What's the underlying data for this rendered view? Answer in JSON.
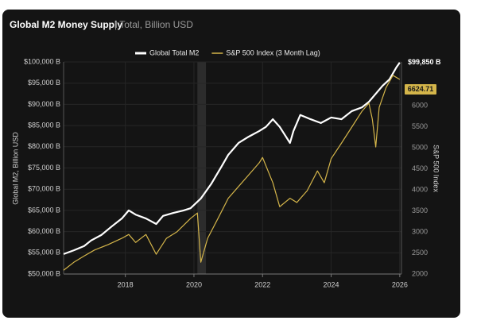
{
  "chart_data": {
    "type": "line",
    "title": "Global M2 Money Supply",
    "subtitle": "| Total, Billion USD",
    "y_label": "Global M2, Billion USD",
    "y2_label": "S&P 500 Index",
    "xlim": [
      2016.2,
      2026.05
    ],
    "xticks": [
      2018,
      2020,
      2022,
      2024,
      2026
    ],
    "ylim": [
      50000,
      100000
    ],
    "yticks": [
      {
        "value": 50000,
        "label": "$50,000 B"
      },
      {
        "value": 55000,
        "label": "$55,000 B"
      },
      {
        "value": 60000,
        "label": "$60,000 B"
      },
      {
        "value": 65000,
        "label": "$65,000 B"
      },
      {
        "value": 70000,
        "label": "$70,000 B"
      },
      {
        "value": 75000,
        "label": "$75,000 B"
      },
      {
        "value": 80000,
        "label": "$80,000 B"
      },
      {
        "value": 85000,
        "label": "$85,000 B"
      },
      {
        "value": 90000,
        "label": "$90,000 B"
      },
      {
        "value": 95000,
        "label": "$95,000 B"
      },
      {
        "value": 100000,
        "label": "$100,000 B"
      }
    ],
    "y2lim": [
      2000,
      7040
    ],
    "y2ticks": [
      2000,
      2500,
      3000,
      3500,
      4000,
      4500,
      5000,
      5500,
      6000
    ],
    "grid": true,
    "legend": "top",
    "shaded_range": [
      2020.1,
      2020.35
    ],
    "series": [
      {
        "name": "Global Total M2",
        "color": "#ffffff",
        "x": [
          2016.2,
          2016.5,
          2016.8,
          2017.0,
          2017.3,
          2017.6,
          2017.9,
          2018.1,
          2018.3,
          2018.6,
          2018.9,
          2019.1,
          2019.4,
          2019.7,
          2019.9,
          2020.2,
          2020.5,
          2020.8,
          2021.0,
          2021.3,
          2021.6,
          2021.9,
          2022.1,
          2022.3,
          2022.5,
          2022.8,
          2022.9,
          2023.1,
          2023.4,
          2023.7,
          2024.0,
          2024.3,
          2024.6,
          2024.9,
          2025.1,
          2025.3,
          2025.5,
          2025.7,
          2025.9,
          2026.0
        ],
        "values": [
          54700,
          55600,
          56600,
          57900,
          59200,
          61200,
          63100,
          65000,
          64000,
          63100,
          61800,
          63700,
          64400,
          65000,
          65500,
          67800,
          71200,
          75300,
          78100,
          80900,
          82400,
          83700,
          84700,
          86500,
          84700,
          80900,
          83700,
          87500,
          86500,
          85600,
          86900,
          86500,
          88400,
          89300,
          90600,
          92500,
          94400,
          95900,
          98700,
          99850
        ],
        "value_labels": [
          null,
          null,
          null,
          null,
          null,
          null,
          null,
          null,
          null,
          null,
          null,
          null,
          null,
          null,
          null,
          null,
          null,
          null,
          null,
          null,
          null,
          null,
          null,
          null,
          null,
          null,
          null,
          null,
          null,
          null,
          null,
          null,
          null,
          null,
          null,
          null,
          null,
          null,
          null,
          "$99,850 B"
        ]
      },
      {
        "name": "S&P 500 Index (3 Month Lag)",
        "color": "#d4b54a",
        "axis": "y2",
        "x": [
          2016.2,
          2016.5,
          2016.8,
          2017.1,
          2017.5,
          2017.9,
          2018.1,
          2018.3,
          2018.6,
          2018.9,
          2019.2,
          2019.5,
          2019.9,
          2020.1,
          2020.2,
          2020.4,
          2020.7,
          2021.0,
          2021.3,
          2021.6,
          2021.9,
          2022.0,
          2022.3,
          2022.5,
          2022.8,
          2023.0,
          2023.3,
          2023.6,
          2023.8,
          2024.0,
          2024.3,
          2024.6,
          2024.9,
          2025.1,
          2025.2,
          2025.3,
          2025.4,
          2025.6,
          2025.8,
          2026.0
        ],
        "values": [
          2090,
          2280,
          2430,
          2570,
          2700,
          2850,
          2940,
          2750,
          2940,
          2470,
          2850,
          3000,
          3320,
          3450,
          2280,
          2850,
          3320,
          3800,
          4080,
          4360,
          4640,
          4770,
          4170,
          3600,
          3800,
          3700,
          3980,
          4450,
          4170,
          4740,
          5110,
          5490,
          5870,
          6060,
          5680,
          5020,
          5960,
          6430,
          6720,
          6624.71
        ]
      }
    ]
  }
}
